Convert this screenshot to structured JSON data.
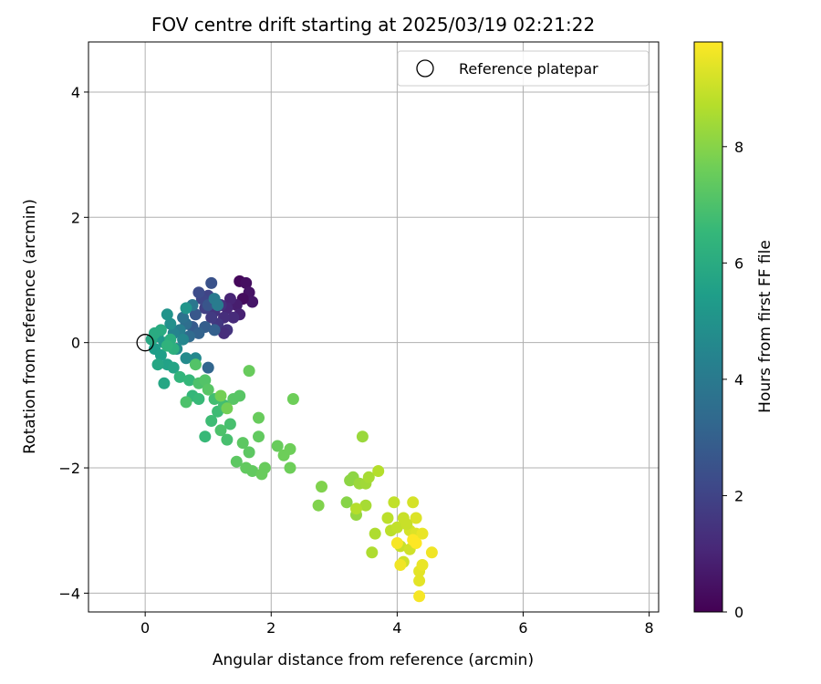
{
  "chart_data": {
    "type": "scatter",
    "title": "FOV centre drift starting at 2025/03/19 02:21:22",
    "xlabel": "Angular distance from reference (arcmin)",
    "ylabel": "Rotation from reference (arcmin)",
    "xlim": [
      -0.9,
      8.15
    ],
    "ylim": [
      -4.3,
      4.8
    ],
    "xticks": [
      0,
      2,
      4,
      6,
      8
    ],
    "yticks": [
      -4,
      -2,
      0,
      2,
      4
    ],
    "grid": true,
    "legend": {
      "placement": "top-right",
      "entries": [
        {
          "label": "Reference platepar",
          "marker": "open-circle"
        }
      ]
    },
    "reference_point": {
      "x": 0,
      "y": 0
    },
    "colorbar": {
      "label": "Hours from first FF file",
      "range": [
        0,
        9.8
      ],
      "ticks": [
        0,
        2,
        4,
        6,
        8
      ],
      "colormap": [
        "#440154",
        "#482878",
        "#3e4989",
        "#31688e",
        "#26828e",
        "#1f9e89",
        "#35b779",
        "#6ece58",
        "#b5de2b",
        "#fde725"
      ]
    },
    "points": [
      {
        "x": 1.5,
        "y": 0.98,
        "h": 0.2
      },
      {
        "x": 1.6,
        "y": 0.95,
        "h": 0.4
      },
      {
        "x": 1.65,
        "y": 0.8,
        "h": 0.5
      },
      {
        "x": 1.7,
        "y": 0.65,
        "h": 0.6
      },
      {
        "x": 1.55,
        "y": 0.7,
        "h": 0.3
      },
      {
        "x": 1.45,
        "y": 0.6,
        "h": 0.8
      },
      {
        "x": 1.5,
        "y": 0.45,
        "h": 0.9
      },
      {
        "x": 1.35,
        "y": 0.7,
        "h": 1.0
      },
      {
        "x": 1.3,
        "y": 0.55,
        "h": 1.1
      },
      {
        "x": 1.4,
        "y": 0.4,
        "h": 1.2
      },
      {
        "x": 1.25,
        "y": 0.4,
        "h": 1.3
      },
      {
        "x": 1.2,
        "y": 0.6,
        "h": 1.4
      },
      {
        "x": 1.1,
        "y": 0.5,
        "h": 1.5
      },
      {
        "x": 1.15,
        "y": 0.3,
        "h": 1.6
      },
      {
        "x": 1.3,
        "y": 0.2,
        "h": 1.5
      },
      {
        "x": 1.25,
        "y": 0.15,
        "h": 1.3
      },
      {
        "x": 1.05,
        "y": 0.4,
        "h": 1.7
      },
      {
        "x": 0.95,
        "y": 0.55,
        "h": 1.9
      },
      {
        "x": 1.0,
        "y": 0.75,
        "h": 2.0
      },
      {
        "x": 0.9,
        "y": 0.7,
        "h": 2.1
      },
      {
        "x": 0.85,
        "y": 0.8,
        "h": 2.3
      },
      {
        "x": 1.05,
        "y": 0.95,
        "h": 2.5
      },
      {
        "x": 1.0,
        "y": 0.6,
        "h": 2.6
      },
      {
        "x": 0.8,
        "y": 0.45,
        "h": 2.7
      },
      {
        "x": 0.75,
        "y": 0.25,
        "h": 2.8
      },
      {
        "x": 0.95,
        "y": 0.25,
        "h": 2.9
      },
      {
        "x": 1.1,
        "y": 0.2,
        "h": 3.0
      },
      {
        "x": 0.85,
        "y": 0.15,
        "h": 3.1
      },
      {
        "x": 1.0,
        "y": -0.4,
        "h": 3.2
      },
      {
        "x": 0.7,
        "y": 0.1,
        "h": 3.4
      },
      {
        "x": 0.65,
        "y": 0.3,
        "h": 3.5
      },
      {
        "x": 0.6,
        "y": 0.4,
        "h": 3.7
      },
      {
        "x": 0.75,
        "y": 0.6,
        "h": 3.9
      },
      {
        "x": 1.1,
        "y": 0.7,
        "h": 4.0
      },
      {
        "x": 1.15,
        "y": 0.6,
        "h": 4.1
      },
      {
        "x": 0.55,
        "y": 0.2,
        "h": 4.2
      },
      {
        "x": 0.45,
        "y": 0.15,
        "h": 4.4
      },
      {
        "x": 0.6,
        "y": 0.05,
        "h": 4.5
      },
      {
        "x": 0.8,
        "y": -0.25,
        "h": 4.6
      },
      {
        "x": 0.65,
        "y": -0.25,
        "h": 4.7
      },
      {
        "x": 0.5,
        "y": -0.1,
        "h": 4.8
      },
      {
        "x": 0.4,
        "y": 0.3,
        "h": 4.9
      },
      {
        "x": 0.35,
        "y": 0.45,
        "h": 5.0
      },
      {
        "x": 0.65,
        "y": 0.55,
        "h": 5.1
      },
      {
        "x": 0.3,
        "y": 0.0,
        "h": 5.2
      },
      {
        "x": 0.2,
        "y": 0.1,
        "h": 5.3
      },
      {
        "x": 0.15,
        "y": -0.1,
        "h": 5.4
      },
      {
        "x": 0.25,
        "y": -0.2,
        "h": 5.5
      },
      {
        "x": 0.35,
        "y": -0.35,
        "h": 5.6
      },
      {
        "x": 0.45,
        "y": -0.4,
        "h": 5.7
      },
      {
        "x": 0.3,
        "y": -0.65,
        "h": 5.8
      },
      {
        "x": 0.2,
        "y": -0.35,
        "h": 5.8
      },
      {
        "x": 0.1,
        "y": 0.05,
        "h": 5.9
      },
      {
        "x": 0.25,
        "y": 0.2,
        "h": 6.0
      },
      {
        "x": 0.4,
        "y": 0.05,
        "h": 6.1
      },
      {
        "x": 0.45,
        "y": -0.1,
        "h": 6.2
      },
      {
        "x": 0.35,
        "y": -0.05,
        "h": 6.3
      },
      {
        "x": 0.15,
        "y": 0.15,
        "h": 6.0
      },
      {
        "x": 0.55,
        "y": -0.55,
        "h": 6.4
      },
      {
        "x": 0.7,
        "y": -0.6,
        "h": 6.5
      },
      {
        "x": 0.75,
        "y": -0.85,
        "h": 6.5
      },
      {
        "x": 0.85,
        "y": -0.9,
        "h": 6.6
      },
      {
        "x": 0.95,
        "y": -1.5,
        "h": 6.6
      },
      {
        "x": 1.05,
        "y": -1.25,
        "h": 6.7
      },
      {
        "x": 1.15,
        "y": -1.1,
        "h": 6.7
      },
      {
        "x": 1.1,
        "y": -0.9,
        "h": 6.8
      },
      {
        "x": 1.25,
        "y": -1.0,
        "h": 6.8
      },
      {
        "x": 1.35,
        "y": -1.3,
        "h": 6.9
      },
      {
        "x": 1.3,
        "y": -1.55,
        "h": 6.9
      },
      {
        "x": 1.2,
        "y": -1.4,
        "h": 7.0
      },
      {
        "x": 0.65,
        "y": -0.95,
        "h": 7.0
      },
      {
        "x": 0.85,
        "y": -0.65,
        "h": 7.0
      },
      {
        "x": 0.8,
        "y": -0.35,
        "h": 7.1
      },
      {
        "x": 0.95,
        "y": -0.6,
        "h": 7.1
      },
      {
        "x": 1.0,
        "y": -0.75,
        "h": 7.2
      },
      {
        "x": 1.4,
        "y": -0.9,
        "h": 7.2
      },
      {
        "x": 1.5,
        "y": -0.85,
        "h": 7.2
      },
      {
        "x": 1.45,
        "y": -1.9,
        "h": 7.3
      },
      {
        "x": 1.55,
        "y": -1.6,
        "h": 7.3
      },
      {
        "x": 1.65,
        "y": -1.75,
        "h": 7.3
      },
      {
        "x": 1.6,
        "y": -2.0,
        "h": 7.4
      },
      {
        "x": 1.7,
        "y": -2.05,
        "h": 7.4
      },
      {
        "x": 1.8,
        "y": -1.5,
        "h": 7.4
      },
      {
        "x": 1.65,
        "y": -0.45,
        "h": 7.5
      },
      {
        "x": 1.8,
        "y": -1.2,
        "h": 7.5
      },
      {
        "x": 1.9,
        "y": -2.0,
        "h": 7.5
      },
      {
        "x": 2.1,
        "y": -1.65,
        "h": 7.5
      },
      {
        "x": 2.2,
        "y": -1.8,
        "h": 7.6
      },
      {
        "x": 2.3,
        "y": -2.0,
        "h": 7.6
      },
      {
        "x": 2.3,
        "y": -1.7,
        "h": 7.6
      },
      {
        "x": 2.35,
        "y": -0.9,
        "h": 7.6
      },
      {
        "x": 1.85,
        "y": -2.1,
        "h": 7.5
      },
      {
        "x": 1.2,
        "y": -0.85,
        "h": 7.7
      },
      {
        "x": 1.3,
        "y": -1.05,
        "h": 7.7
      },
      {
        "x": 2.75,
        "y": -2.6,
        "h": 7.9
      },
      {
        "x": 2.8,
        "y": -2.3,
        "h": 7.9
      },
      {
        "x": 3.2,
        "y": -2.55,
        "h": 8.0
      },
      {
        "x": 3.25,
        "y": -2.2,
        "h": 8.1
      },
      {
        "x": 3.3,
        "y": -2.15,
        "h": 8.1
      },
      {
        "x": 3.35,
        "y": -2.75,
        "h": 8.2
      },
      {
        "x": 3.4,
        "y": -2.25,
        "h": 8.3
      },
      {
        "x": 3.45,
        "y": -1.5,
        "h": 8.3
      },
      {
        "x": 3.5,
        "y": -2.25,
        "h": 8.4
      },
      {
        "x": 3.55,
        "y": -2.15,
        "h": 8.5
      },
      {
        "x": 3.5,
        "y": -2.6,
        "h": 8.5
      },
      {
        "x": 3.6,
        "y": -3.35,
        "h": 8.6
      },
      {
        "x": 3.65,
        "y": -3.05,
        "h": 8.6
      },
      {
        "x": 3.35,
        "y": -2.65,
        "h": 8.7
      },
      {
        "x": 3.7,
        "y": -2.05,
        "h": 8.7
      },
      {
        "x": 3.85,
        "y": -2.8,
        "h": 8.8
      },
      {
        "x": 3.9,
        "y": -3.0,
        "h": 8.8
      },
      {
        "x": 3.95,
        "y": -2.55,
        "h": 8.9
      },
      {
        "x": 4.0,
        "y": -2.95,
        "h": 8.9
      },
      {
        "x": 4.05,
        "y": -3.25,
        "h": 9.0
      },
      {
        "x": 4.1,
        "y": -2.8,
        "h": 9.0
      },
      {
        "x": 4.1,
        "y": -3.5,
        "h": 9.1
      },
      {
        "x": 4.2,
        "y": -3.3,
        "h": 9.1
      },
      {
        "x": 4.2,
        "y": -3.0,
        "h": 9.2
      },
      {
        "x": 4.25,
        "y": -2.55,
        "h": 9.2
      },
      {
        "x": 4.3,
        "y": -3.05,
        "h": 9.3
      },
      {
        "x": 4.3,
        "y": -2.8,
        "h": 9.3
      },
      {
        "x": 4.35,
        "y": -3.65,
        "h": 9.4
      },
      {
        "x": 4.35,
        "y": -3.8,
        "h": 9.4
      },
      {
        "x": 4.4,
        "y": -3.55,
        "h": 9.5
      },
      {
        "x": 4.4,
        "y": -3.05,
        "h": 9.5
      },
      {
        "x": 4.55,
        "y": -3.35,
        "h": 9.6
      },
      {
        "x": 4.35,
        "y": -4.05,
        "h": 9.7
      },
      {
        "x": 4.0,
        "y": -3.2,
        "h": 9.7
      },
      {
        "x": 4.25,
        "y": -3.15,
        "h": 9.8
      },
      {
        "x": 4.05,
        "y": -3.55,
        "h": 9.6
      },
      {
        "x": 4.15,
        "y": -2.9,
        "h": 9.0
      },
      {
        "x": 4.3,
        "y": -3.2,
        "h": 9.8
      }
    ]
  }
}
